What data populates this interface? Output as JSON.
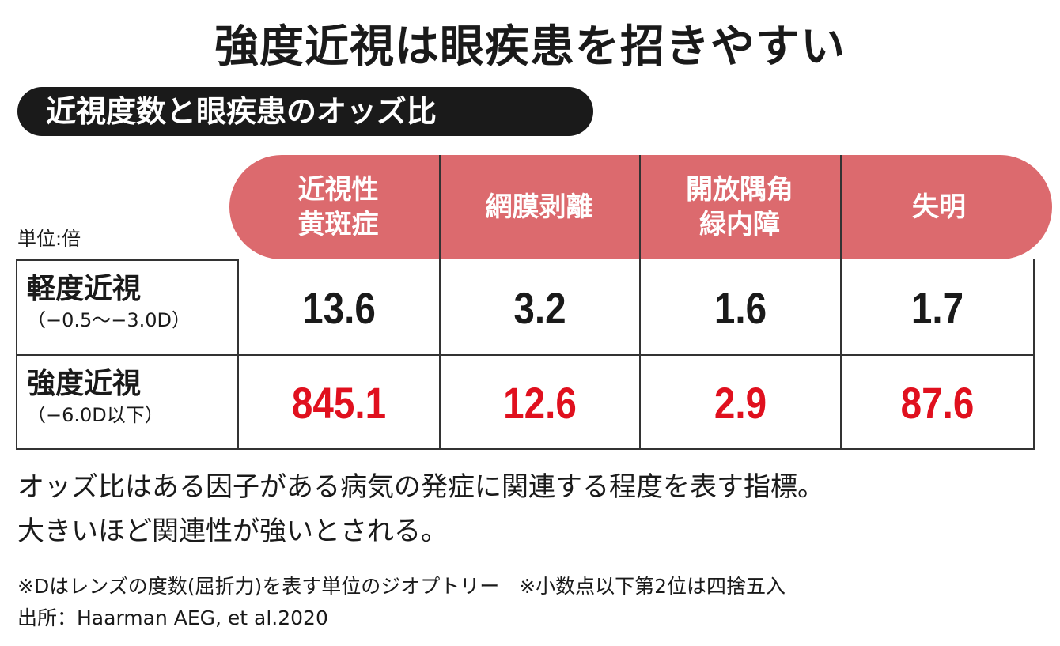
{
  "title": "強度近視は眼疾患を招きやすい",
  "subtitle": "近視度数と眼疾患のオッズ比",
  "chart_data": {
    "type": "table",
    "unit_label": "単位:倍",
    "columns": [
      "近視性\n黄斑症",
      "網膜剥離",
      "開放隅角\n緑内障",
      "失明"
    ],
    "rows": [
      {
        "label": "軽度近視",
        "sublabel": "（−0.5〜−3.0D）",
        "values": [
          "13.6",
          "3.2",
          "1.6",
          "1.7"
        ],
        "color": "#1a1a1a"
      },
      {
        "label": "強度近視",
        "sublabel": "（−6.0D以下）",
        "values": [
          "845.1",
          "12.6",
          "2.9",
          "87.6"
        ],
        "color": "#e0101e"
      }
    ],
    "header_color": "#dc6a6e"
  },
  "note": [
    "オッズ比はある因子がある病気の発症に関連する程度を表す指標。",
    "大きいほど関連性が強いとされる。"
  ],
  "footnotes": [
    "※Dはレンズの度数(屈折力)を表す単位のジオプトリー　※小数点以下第2位は四捨五入",
    "出所：Haarman AEG, et al.2020"
  ]
}
